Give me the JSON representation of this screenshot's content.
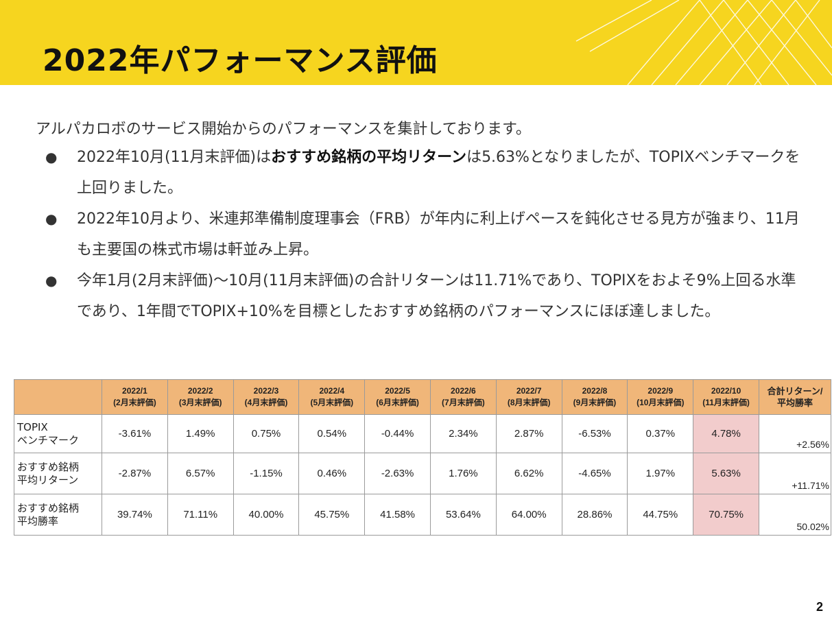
{
  "header": {
    "title": "2022年パフォーマンス評価",
    "accent_color": "#f6d51f"
  },
  "intro": "アルパカロボのサービス開始からのパフォーマンスを集計しております。",
  "bullets": [
    {
      "pre": "2022年10月(11月末評価)は",
      "bold": "おすすめ銘柄の平均リターン",
      "post": "は5.63%となりましたが、TOPIXベンチマークを上回りました。"
    },
    {
      "pre": "2022年10月より、米連邦準備制度理事会（FRB）が年内に利上げペースを鈍化させる見方が強まり、11月も主要国の株式市場は軒並み上昇。",
      "bold": "",
      "post": ""
    },
    {
      "pre": "今年1月(2月末評価)～10月(11月末評価)の合計リターンは11.71%であり、TOPIXをおよそ9%上回る水準であり、1年間でTOPIX+10%を目標としたおすすめ銘柄のパフォーマンスにほぼ達しました。",
      "bold": "",
      "post": ""
    }
  ],
  "table": {
    "header_fill": "#f0b679",
    "highlight_fill": "#f2cccc",
    "columns": [
      {
        "month": "2022/1",
        "eval": "(2月末評価)"
      },
      {
        "month": "2022/2",
        "eval": "(3月末評価)"
      },
      {
        "month": "2022/3",
        "eval": "(4月末評価)"
      },
      {
        "month": "2022/4",
        "eval": "(5月末評価)"
      },
      {
        "month": "2022/5",
        "eval": "(6月末評価)"
      },
      {
        "month": "2022/6",
        "eval": "(7月末評価)"
      },
      {
        "month": "2022/7",
        "eval": "(8月末評価)"
      },
      {
        "month": "2022/8",
        "eval": "(9月末評価)"
      },
      {
        "month": "2022/9",
        "eval": "(10月末評価)"
      },
      {
        "month": "2022/10",
        "eval": "(11月末評価)"
      }
    ],
    "total_header": {
      "line1": "合計リターン/",
      "line2": "平均勝率"
    },
    "rows": [
      {
        "label1": "TOPIX",
        "label2": "ベンチマーク",
        "values": [
          "-3.61%",
          "1.49%",
          "0.75%",
          "0.54%",
          "-0.44%",
          "2.34%",
          "2.87%",
          "-6.53%",
          "0.37%",
          "4.78%"
        ],
        "total": "+2.56%"
      },
      {
        "label1": "おすすめ銘柄",
        "label2": "平均リターン",
        "values": [
          "-2.87%",
          "6.57%",
          "-1.15%",
          "0.46%",
          "-2.63%",
          "1.76%",
          "6.62%",
          "-4.65%",
          "1.97%",
          "5.63%"
        ],
        "total": "+11.71%"
      },
      {
        "label1": "おすすめ銘柄",
        "label2": "平均勝率",
        "values": [
          "39.74%",
          "71.11%",
          "40.00%",
          "45.75%",
          "41.58%",
          "53.64%",
          "64.00%",
          "28.86%",
          "44.75%",
          "70.75%"
        ],
        "total": "50.02%"
      }
    ]
  },
  "page_number": "2"
}
